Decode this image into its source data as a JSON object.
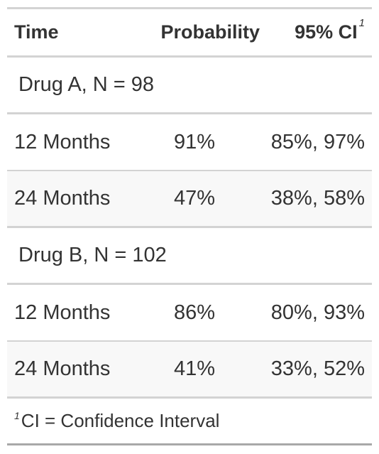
{
  "table": {
    "headers": {
      "time": "Time",
      "probability": "Probability",
      "ci": "95% CI",
      "ci_footnote_mark": "1"
    },
    "groups": [
      {
        "label": "Drug A, N = 98",
        "rows": [
          {
            "time": "12 Months",
            "probability": "91%",
            "ci": "85%, 97%"
          },
          {
            "time": "24 Months",
            "probability": "47%",
            "ci": "38%, 58%"
          }
        ]
      },
      {
        "label": "Drug B, N = 102",
        "rows": [
          {
            "time": "12 Months",
            "probability": "86%",
            "ci": "80%, 93%"
          },
          {
            "time": "24 Months",
            "probability": "41%",
            "ci": "33%, 52%"
          }
        ]
      }
    ],
    "footnote": {
      "mark": "1",
      "text": "CI = Confidence Interval"
    }
  }
}
